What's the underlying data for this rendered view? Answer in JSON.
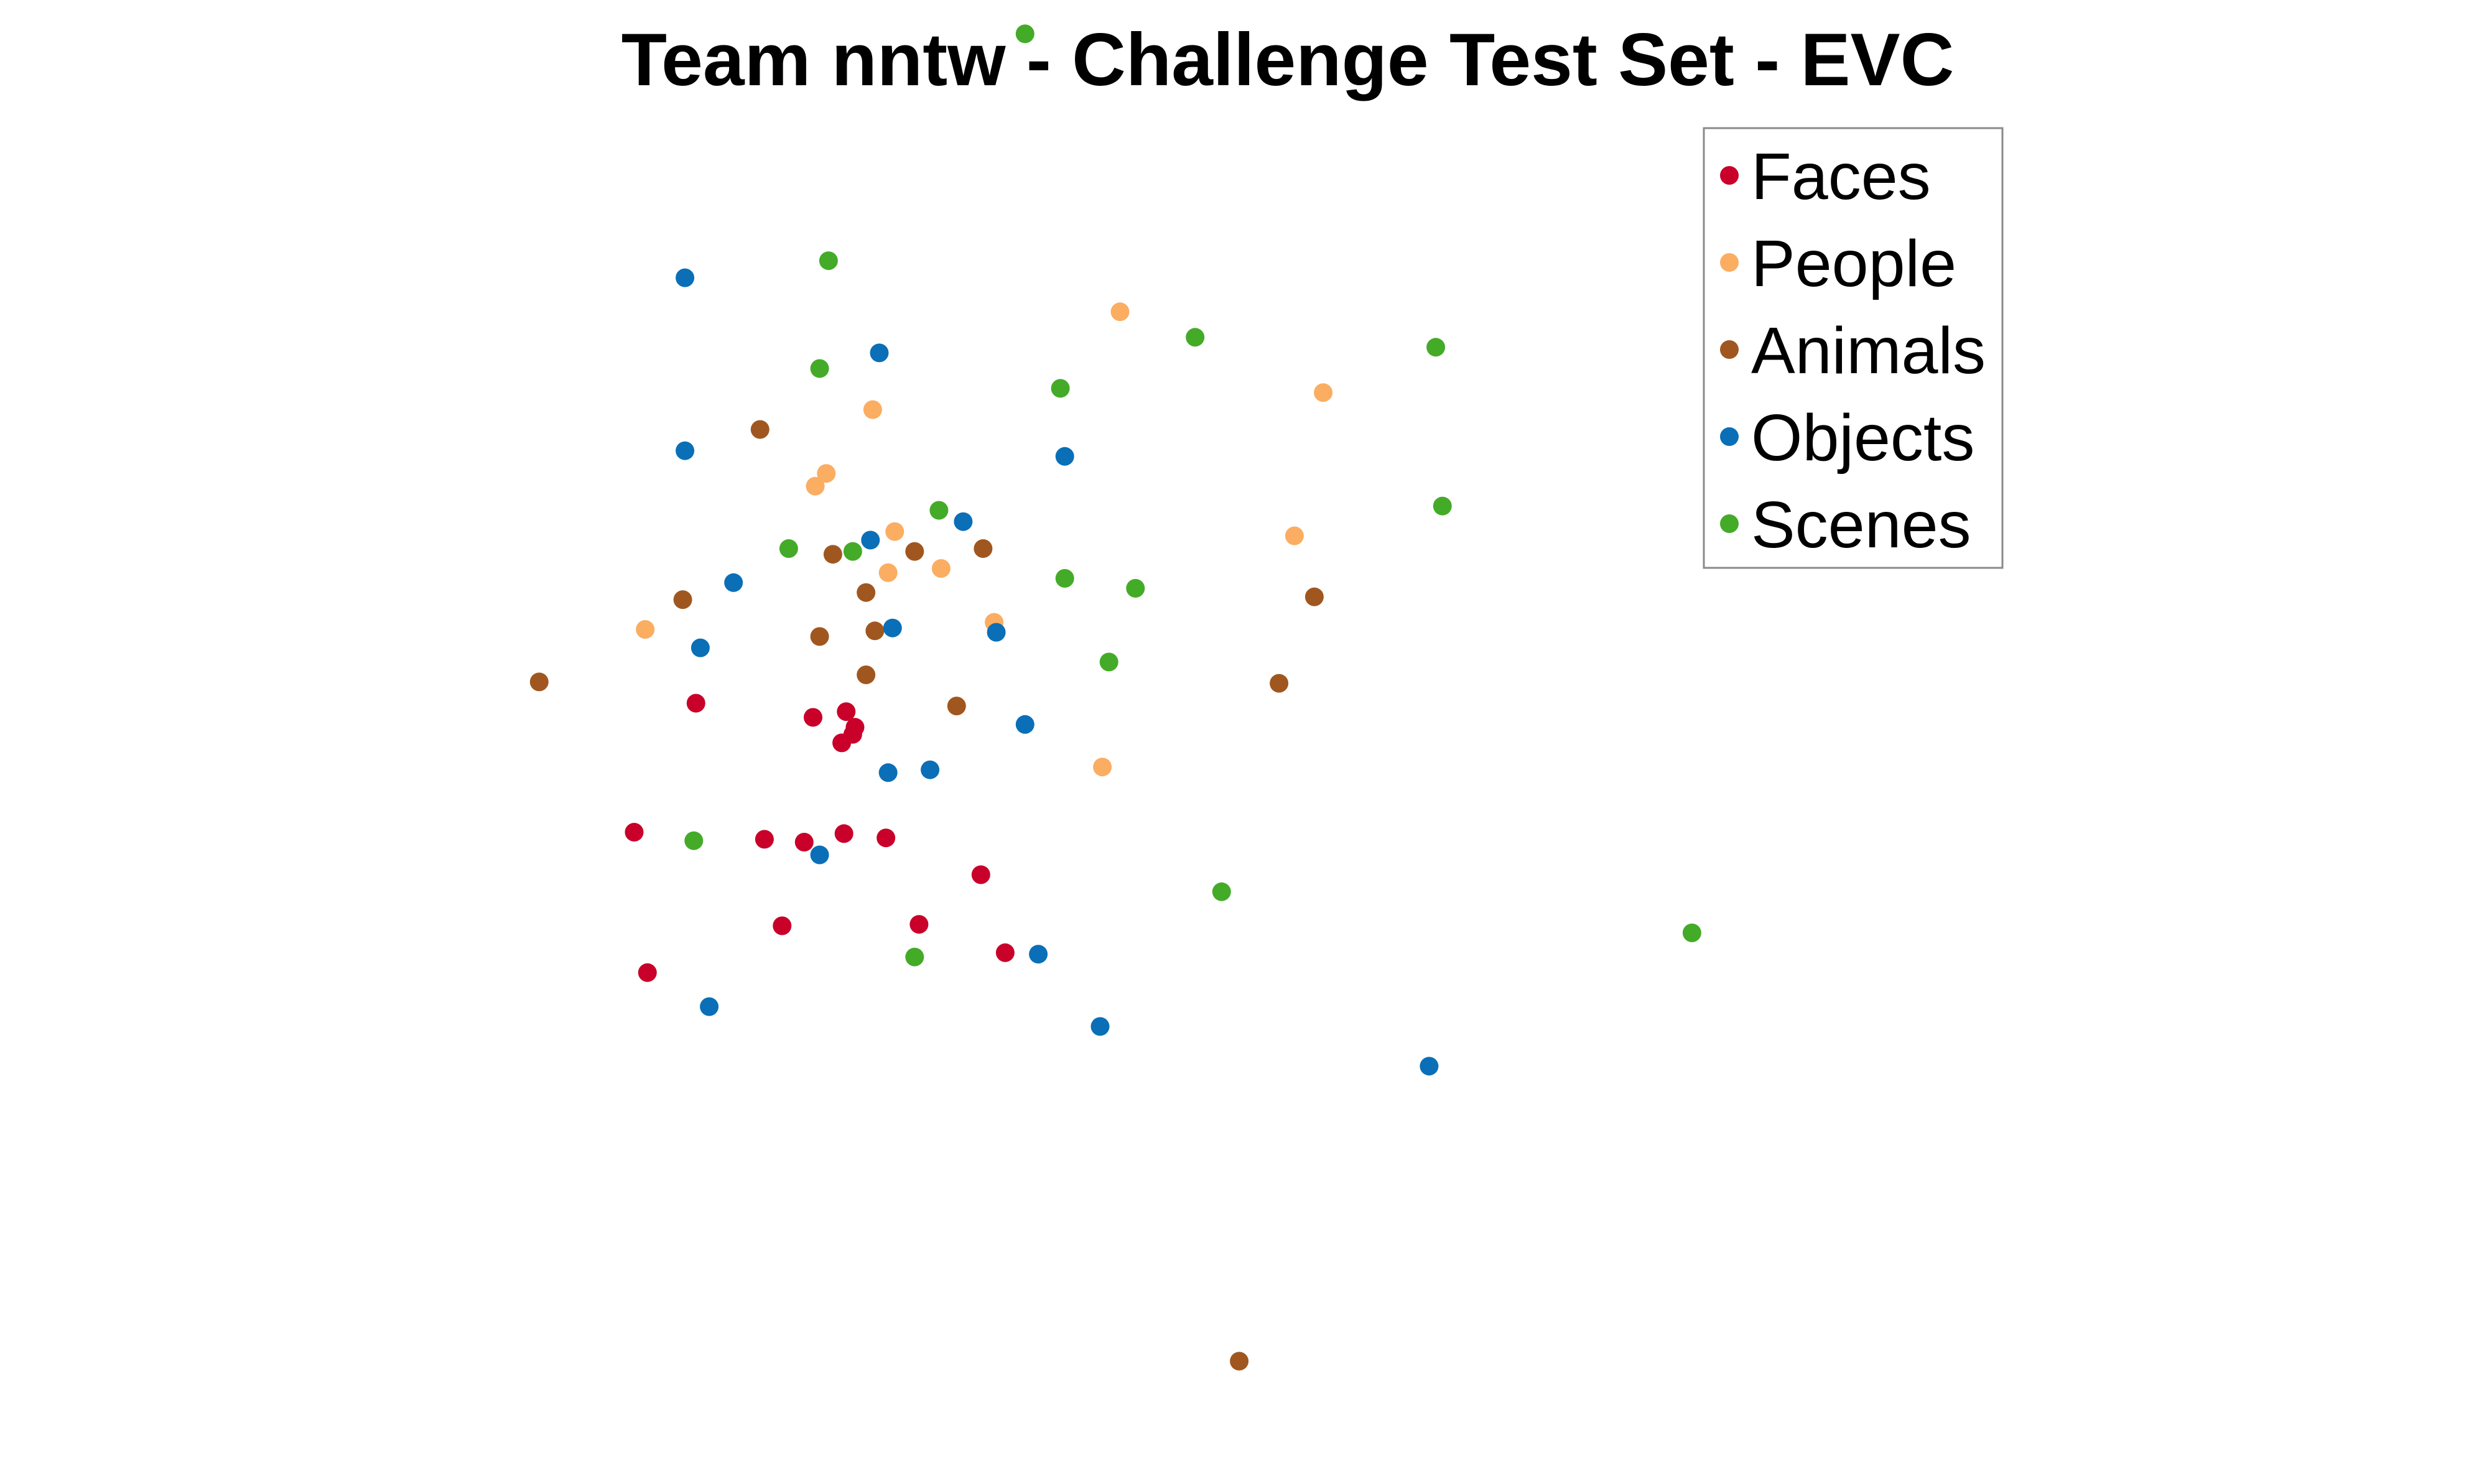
{
  "chart_data": {
    "type": "scatter",
    "title": "Team nntw  - Challenge Test Set - EVC",
    "xlabel": "",
    "ylabel": "",
    "axes_visible": false,
    "grid": false,
    "legend_position": "top-right",
    "xlim": [
      0,
      100
    ],
    "ylim": [
      0,
      100
    ],
    "series": [
      {
        "name": "Faces",
        "color": "#c8002a",
        "points": [
          [
            35.8,
            52.6
          ],
          [
            34.0,
            53.8
          ],
          [
            35.5,
            54.2
          ],
          [
            35.9,
            53.1
          ],
          [
            35.3,
            52.0
          ],
          [
            28.7,
            54.8
          ],
          [
            25.9,
            45.7
          ],
          [
            31.8,
            45.2
          ],
          [
            33.6,
            45.0
          ],
          [
            35.4,
            45.6
          ],
          [
            37.3,
            45.3
          ],
          [
            41.6,
            42.7
          ],
          [
            32.6,
            39.1
          ],
          [
            38.8,
            39.2
          ],
          [
            42.7,
            37.2
          ],
          [
            26.5,
            35.8
          ]
        ]
      },
      {
        "name": "People",
        "color": "#fbad62",
        "points": [
          [
            47.9,
            82.4
          ],
          [
            57.1,
            76.7
          ],
          [
            36.7,
            75.5
          ],
          [
            34.6,
            71.0
          ],
          [
            34.1,
            70.1
          ],
          [
            37.7,
            66.9
          ],
          [
            37.4,
            64.0
          ],
          [
            39.8,
            64.3
          ],
          [
            55.8,
            66.6
          ],
          [
            42.2,
            60.5
          ],
          [
            26.4,
            60.0
          ],
          [
            47.1,
            50.3
          ]
        ]
      },
      {
        "name": "Animals",
        "color": "#a0571f",
        "points": [
          [
            31.6,
            74.1
          ],
          [
            34.9,
            65.3
          ],
          [
            38.6,
            65.5
          ],
          [
            41.7,
            65.7
          ],
          [
            28.1,
            62.1
          ],
          [
            36.4,
            62.6
          ],
          [
            36.8,
            59.9
          ],
          [
            34.3,
            59.5
          ],
          [
            56.7,
            62.3
          ],
          [
            36.4,
            56.8
          ],
          [
            21.6,
            56.3
          ],
          [
            55.1,
            56.2
          ],
          [
            40.5,
            54.6
          ],
          [
            53.3,
            8.4
          ]
        ]
      },
      {
        "name": "Objects",
        "color": "#0a6fb7",
        "points": [
          [
            28.2,
            84.8
          ],
          [
            37.0,
            79.5
          ],
          [
            45.4,
            72.2
          ],
          [
            28.2,
            72.6
          ],
          [
            40.8,
            67.6
          ],
          [
            36.6,
            66.3
          ],
          [
            30.4,
            63.3
          ],
          [
            37.6,
            60.1
          ],
          [
            42.3,
            59.8
          ],
          [
            28.9,
            58.7
          ],
          [
            43.6,
            53.3
          ],
          [
            37.4,
            49.9
          ],
          [
            39.3,
            50.1
          ],
          [
            34.3,
            44.1
          ],
          [
            44.2,
            37.1
          ],
          [
            29.3,
            33.4
          ],
          [
            47.0,
            32.0
          ],
          [
            61.9,
            29.2
          ]
        ]
      },
      {
        "name": "Scenes",
        "color": "#44ab28",
        "points": [
          [
            43.6,
            102.0
          ],
          [
            34.7,
            86.0
          ],
          [
            51.3,
            80.6
          ],
          [
            62.2,
            79.9
          ],
          [
            34.3,
            78.4
          ],
          [
            45.2,
            77.0
          ],
          [
            39.7,
            68.4
          ],
          [
            32.9,
            65.7
          ],
          [
            35.8,
            65.5
          ],
          [
            62.5,
            68.7
          ],
          [
            81.2,
            69.2
          ],
          [
            45.4,
            63.6
          ],
          [
            48.6,
            62.9
          ],
          [
            47.4,
            57.7
          ],
          [
            28.6,
            45.1
          ],
          [
            52.5,
            41.5
          ],
          [
            73.8,
            38.6
          ],
          [
            38.6,
            36.9
          ]
        ]
      }
    ]
  }
}
